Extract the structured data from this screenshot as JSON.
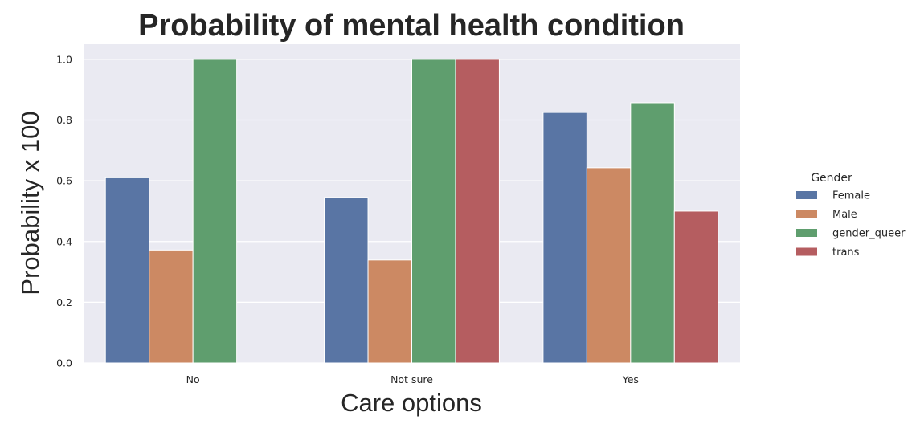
{
  "chart_data": {
    "type": "bar",
    "title": "Probability of mental health condition",
    "xlabel": "Care options",
    "ylabel": "Probability x 100",
    "categories": [
      "No",
      "Not sure",
      "Yes"
    ],
    "ylim": [
      0,
      1.05
    ],
    "yticks": [
      "0.0",
      "0.2",
      "0.4",
      "0.6",
      "0.8",
      "1.0"
    ],
    "grid": true,
    "legend": {
      "title": "Gender",
      "placement": "right"
    },
    "series": [
      {
        "name": "Female",
        "color": "#5975a4",
        "values": [
          0.61,
          0.545,
          0.825
        ]
      },
      {
        "name": "Male",
        "color": "#cc8963",
        "values": [
          0.372,
          0.339,
          0.643
        ]
      },
      {
        "name": "gender_queer",
        "color": "#5f9e6e",
        "values": [
          1.0,
          1.0,
          0.857
        ]
      },
      {
        "name": "trans",
        "color": "#b55d60",
        "values": [
          null,
          1.0,
          0.5
        ]
      }
    ]
  }
}
